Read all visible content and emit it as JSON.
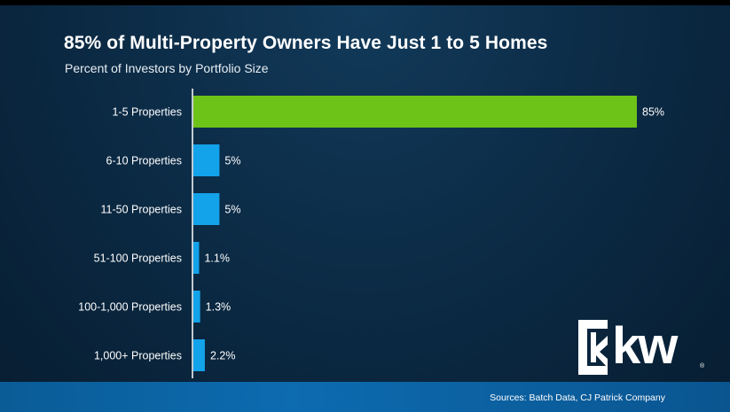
{
  "slide": {
    "title": "85% of Multi-Property Owners Have Just 1 to 5 Homes",
    "subtitle": "Percent of Investors by Portfolio Size",
    "source": "Sources: Batch Data, CJ Patrick Company",
    "logo_text": "kw",
    "logo_registered": "®"
  },
  "colors": {
    "highlight_bar": "#6ec318",
    "bar": "#12a3ea",
    "axis": "#ffffff",
    "text": "#ffffff"
  },
  "icons": {
    "logo": "kw-logo-icon"
  },
  "chart_data": {
    "type": "bar",
    "orientation": "horizontal",
    "title": "85% of Multi-Property Owners Have Just 1 to 5 Homes",
    "subtitle": "Percent of Investors by Portfolio Size",
    "categories": [
      "1-5 Properties",
      "6-10 Properties",
      "11-50 Properties",
      "51-100 Properties",
      "100-1,000 Properties",
      "1,000+ Properties"
    ],
    "values": [
      85,
      5,
      5,
      1.1,
      1.3,
      2.2
    ],
    "data_labels": [
      "85%",
      "5%",
      "5%",
      "1.1%",
      "1.3%",
      "2.2%"
    ],
    "highlight_index": 0,
    "xlim": [
      0,
      85
    ],
    "grid": false,
    "legend": "none"
  }
}
